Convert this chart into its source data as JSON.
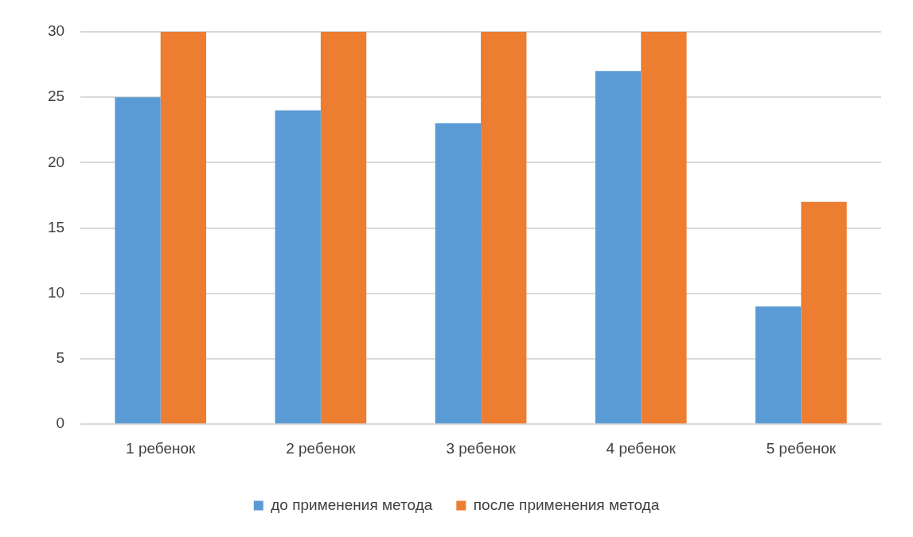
{
  "chart_data": {
    "type": "bar",
    "categories": [
      "1 ребенок",
      "2 ребенок",
      "3 ребенок",
      "4 ребенок",
      "5 ребенок"
    ],
    "series": [
      {
        "name": "до применения метода",
        "color": "#5b9bd5",
        "values": [
          25,
          24,
          23,
          27,
          9
        ]
      },
      {
        "name": "после применения метода",
        "color": "#ed7d31",
        "values": [
          30,
          30,
          30,
          30,
          17
        ]
      }
    ],
    "ylim": [
      0,
      30
    ],
    "yticks": [
      0,
      5,
      10,
      15,
      20,
      25,
      30
    ],
    "grid": "y",
    "legend": "bottom"
  }
}
